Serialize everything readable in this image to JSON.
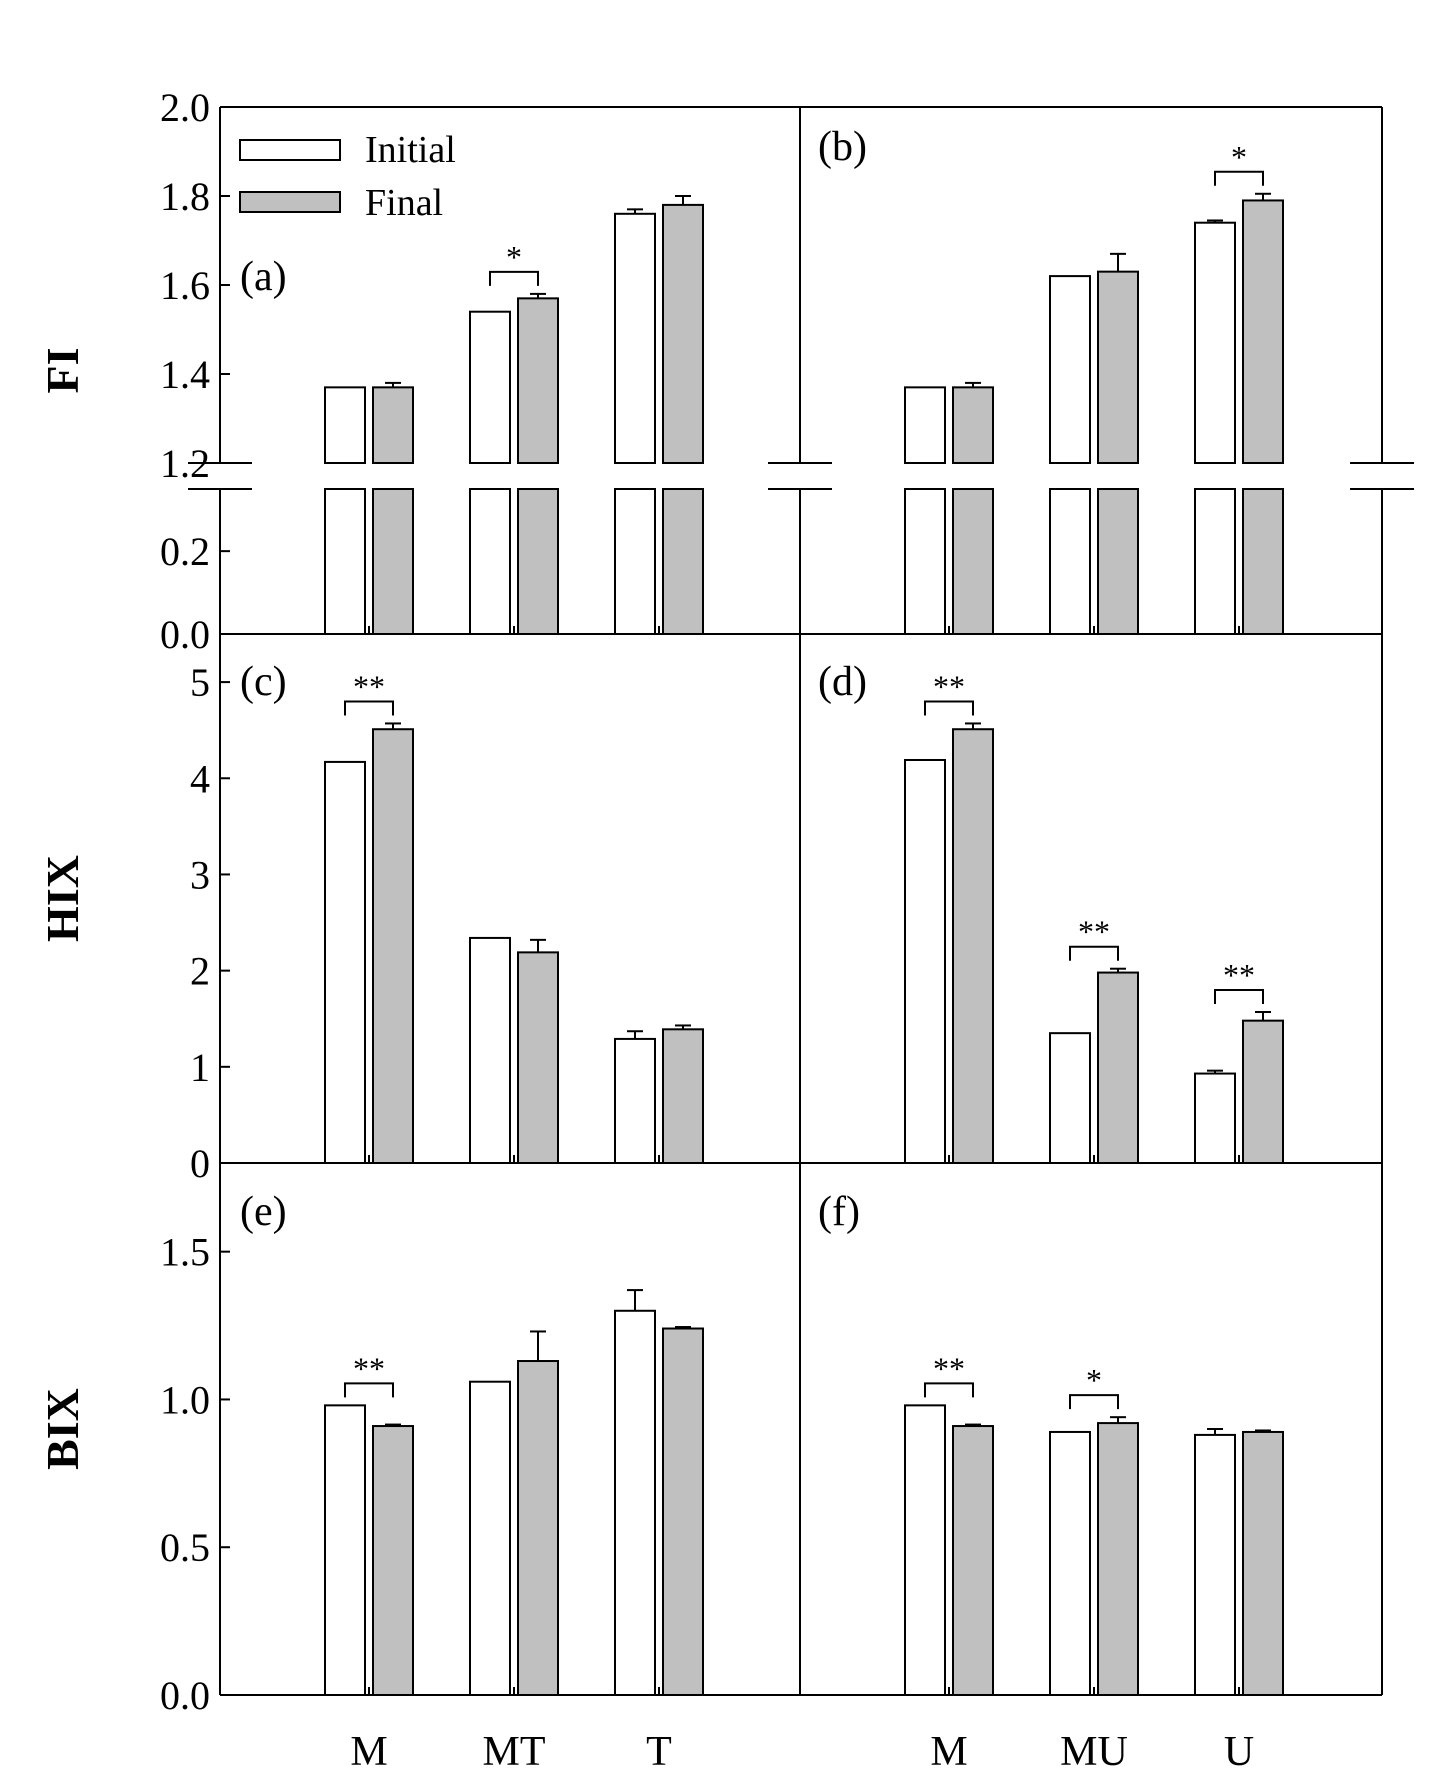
{
  "legend": [
    {
      "label": "Initial",
      "color": "#ffffff"
    },
    {
      "label": "Final",
      "color": "#c0c0c0"
    }
  ],
  "chart_data": [
    {
      "type": "bar",
      "panel": "(a)",
      "ylabel": "FI",
      "broken_axis": true,
      "ylim_lower": [
        0,
        0.35
      ],
      "ylim_upper": [
        1.2,
        2.0
      ],
      "yticks": [
        "0.0",
        "0.2",
        "1.2",
        "1.4",
        "1.6",
        "1.8",
        "2.0"
      ],
      "categories": [
        "M",
        "MT",
        "T"
      ],
      "series": [
        {
          "name": "Initial",
          "values": [
            1.37,
            1.54,
            1.76
          ],
          "errors": [
            0,
            0,
            0.01
          ]
        },
        {
          "name": "Final",
          "values": [
            1.37,
            1.57,
            1.78
          ],
          "errors": [
            0.01,
            0.01,
            0.02
          ]
        }
      ],
      "significance": [
        {
          "category": "MT",
          "label": "*"
        }
      ]
    },
    {
      "type": "bar",
      "panel": "(b)",
      "ylabel": "FI",
      "broken_axis": true,
      "ylim_lower": [
        0,
        0.35
      ],
      "ylim_upper": [
        1.2,
        2.0
      ],
      "categories": [
        "M",
        "MU",
        "U"
      ],
      "series": [
        {
          "name": "Initial",
          "values": [
            1.37,
            1.62,
            1.74
          ],
          "errors": [
            0,
            0,
            0.005
          ]
        },
        {
          "name": "Final",
          "values": [
            1.37,
            1.63,
            1.79
          ],
          "errors": [
            0.01,
            0.04,
            0.015
          ]
        }
      ],
      "significance": [
        {
          "category": "U",
          "label": "*"
        }
      ]
    },
    {
      "type": "bar",
      "panel": "(c)",
      "ylabel": "HIX",
      "ylim": [
        0,
        5.5
      ],
      "yticks": [
        "0",
        "1",
        "2",
        "3",
        "4",
        "5"
      ],
      "categories": [
        "M",
        "MT",
        "T"
      ],
      "series": [
        {
          "name": "Initial",
          "values": [
            4.17,
            2.34,
            1.29
          ],
          "errors": [
            0,
            0,
            0.08
          ]
        },
        {
          "name": "Final",
          "values": [
            4.51,
            2.19,
            1.39
          ],
          "errors": [
            0.06,
            0.13,
            0.04
          ]
        }
      ],
      "significance": [
        {
          "category": "M",
          "label": "**"
        }
      ]
    },
    {
      "type": "bar",
      "panel": "(d)",
      "ylabel": "HIX",
      "ylim": [
        0,
        5.5
      ],
      "categories": [
        "M",
        "MU",
        "U"
      ],
      "series": [
        {
          "name": "Initial",
          "values": [
            4.19,
            1.35,
            0.93
          ],
          "errors": [
            0,
            0,
            0.03
          ]
        },
        {
          "name": "Final",
          "values": [
            4.51,
            1.98,
            1.48
          ],
          "errors": [
            0.06,
            0.04,
            0.09
          ]
        }
      ],
      "significance": [
        {
          "category": "M",
          "label": "**"
        },
        {
          "category": "MU",
          "label": "**"
        },
        {
          "category": "U",
          "label": "**"
        }
      ]
    },
    {
      "type": "bar",
      "panel": "(e)",
      "ylabel": "BIX",
      "ylim": [
        0,
        1.8
      ],
      "yticks": [
        "0.0",
        "0.5",
        "1.0",
        "1.5"
      ],
      "categories": [
        "M",
        "MT",
        "T"
      ],
      "series": [
        {
          "name": "Initial",
          "values": [
            0.98,
            1.06,
            1.3
          ],
          "errors": [
            0,
            0,
            0.07
          ]
        },
        {
          "name": "Final",
          "values": [
            0.91,
            1.13,
            1.24
          ],
          "errors": [
            0.005,
            0.1,
            0.005
          ]
        }
      ],
      "significance": [
        {
          "category": "M",
          "label": "**"
        }
      ]
    },
    {
      "type": "bar",
      "panel": "(f)",
      "ylabel": "BIX",
      "ylim": [
        0,
        1.8
      ],
      "categories": [
        "M",
        "MU",
        "U"
      ],
      "series": [
        {
          "name": "Initial",
          "values": [
            0.98,
            0.89,
            0.88
          ],
          "errors": [
            0,
            0,
            0.02
          ]
        },
        {
          "name": "Final",
          "values": [
            0.91,
            0.92,
            0.89
          ],
          "errors": [
            0.005,
            0.02,
            0.005
          ]
        }
      ],
      "significance": [
        {
          "category": "M",
          "label": "**"
        },
        {
          "category": "MU",
          "label": "*"
        }
      ]
    }
  ]
}
